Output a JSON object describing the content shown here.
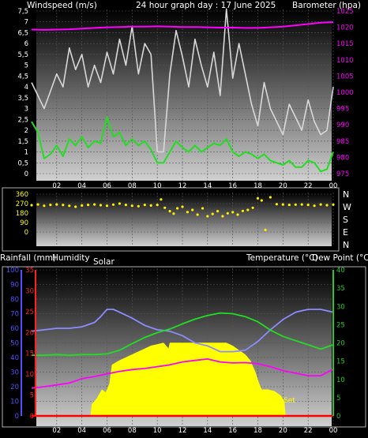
{
  "header": {
    "windspeed_label": "Windspeed (m/s)",
    "title": "24 hour graph day : 17 June 2025",
    "barometer_label": "Barometer (hpa)"
  },
  "middle": {
    "directions": [
      "N",
      "W",
      "S",
      "E",
      "N"
    ]
  },
  "lower_header": {
    "rainfall_label": "Rainfall (mm)",
    "humidity_label": "Humidity",
    "solar_label": "Solar",
    "temperature_label": "Temperature (°C)",
    "dewpoint_label": "Dew Point (°C)",
    "sunset_label": "Set"
  },
  "colors": {
    "gust": "#d8d8d8",
    "wind_avg": "#22dd22",
    "barometer": "#ff00ff",
    "direction": "#ffee00",
    "humidity": "#8c8cff",
    "temperature": "#22dd22",
    "dewpoint": "#ff00ff",
    "solar": "#ffff00",
    "rain": "#ff0000",
    "humidity_axis": "#5050ff",
    "rain_axis": "#ff2020",
    "temp_axis": "#22cc22",
    "baro_axis": "#ff00ff"
  },
  "chart_data": [
    {
      "type": "line",
      "name": "wind-barometer",
      "x_ticks": [
        "02",
        "04",
        "06",
        "08",
        "10",
        "12",
        "14",
        "16",
        "18",
        "20",
        "22",
        "00"
      ],
      "xlim": [
        0,
        24
      ],
      "y_left_ticks": [
        "7,5",
        "7",
        "6,5",
        "6",
        "5,5",
        "5",
        "4,5",
        "4",
        "3,5",
        "3",
        "2,5",
        "2",
        "1,5",
        "1",
        "0,5",
        "0"
      ],
      "ylim_left": [
        0,
        7.5
      ],
      "y_right_ticks": [
        "1025",
        "1020",
        "1015",
        "1010",
        "1005",
        "1000",
        "995",
        "990",
        "985",
        "980",
        "975"
      ],
      "ylim_right": [
        975,
        1025
      ],
      "series": [
        {
          "key": "gust",
          "axis": "left",
          "x": [
            0,
            0.5,
            1,
            1.5,
            2,
            2.5,
            3,
            3.5,
            4,
            4.5,
            5,
            5.5,
            6,
            6.5,
            7,
            7.5,
            8,
            8.5,
            9,
            9.5,
            10,
            10.5,
            11,
            11.5,
            12,
            12.5,
            13,
            13.5,
            14,
            14.5,
            15,
            15.5,
            16,
            16.5,
            17,
            17.5,
            18,
            18.5,
            19,
            19.5,
            20,
            20.5,
            21,
            21.5,
            22,
            22.5,
            23,
            23.5,
            24
          ],
          "values": [
            4.2,
            3.6,
            3.0,
            3.8,
            4.6,
            4.0,
            5.8,
            4.8,
            5.5,
            4.0,
            5.0,
            4.2,
            5.6,
            4.6,
            6.2,
            5.0,
            6.8,
            4.6,
            6.0,
            5.5,
            1.0,
            1.0,
            4.6,
            6.6,
            5.4,
            4.0,
            6.2,
            5.0,
            4.0,
            5.6,
            3.6,
            7.6,
            4.4,
            6.0,
            4.6,
            3.2,
            2.2,
            4.2,
            3.0,
            2.4,
            1.8,
            3.2,
            2.6,
            2.0,
            3.4,
            2.4,
            1.8,
            2.0,
            4.0
          ]
        },
        {
          "key": "wind_avg",
          "axis": "left",
          "x": [
            0,
            0.5,
            1,
            1.5,
            2,
            2.5,
            3,
            3.5,
            4,
            4.5,
            5,
            5.5,
            6,
            6.5,
            7,
            7.5,
            8,
            8.5,
            9,
            9.5,
            10,
            10.5,
            11,
            11.5,
            12,
            12.5,
            13,
            13.5,
            14,
            14.5,
            15,
            15.5,
            16,
            16.5,
            17,
            17.5,
            18,
            18.5,
            19,
            19.5,
            20,
            20.5,
            21,
            21.5,
            22,
            22.5,
            23,
            23.5,
            24
          ],
          "values": [
            2.4,
            1.9,
            0.7,
            0.9,
            1.3,
            0.8,
            1.6,
            1.3,
            1.7,
            1.2,
            1.5,
            1.4,
            2.6,
            1.7,
            1.9,
            1.3,
            1.6,
            1.3,
            1.5,
            1.1,
            0.5,
            0.5,
            1.0,
            1.5,
            1.2,
            1.0,
            1.3,
            1.0,
            1.2,
            1.4,
            1.3,
            1.6,
            1.0,
            0.8,
            1.0,
            0.9,
            0.7,
            0.9,
            0.6,
            0.5,
            0.4,
            0.6,
            0.3,
            0.3,
            0.6,
            0.5,
            0.1,
            0.2,
            1.0
          ]
        },
        {
          "key": "barometer",
          "axis": "right",
          "x": [
            0,
            1,
            2,
            3,
            4,
            5,
            6,
            7,
            8,
            9,
            10,
            11,
            12,
            13,
            14,
            15,
            16,
            17,
            18,
            19,
            20,
            21,
            22,
            23,
            24
          ],
          "values": [
            1019.3,
            1019.2,
            1019.3,
            1019.4,
            1019.6,
            1019.8,
            1020.0,
            1020.1,
            1020.2,
            1020.2,
            1020.3,
            1020.2,
            1020.1,
            1020.1,
            1020.0,
            1019.9,
            1019.9,
            1019.8,
            1019.8,
            1020.0,
            1020.2,
            1020.6,
            1021.0,
            1021.4,
            1021.6
          ]
        }
      ]
    },
    {
      "type": "scatter",
      "name": "wind-direction",
      "x_ticks": [
        "02",
        "04",
        "06",
        "08",
        "10",
        "12",
        "14",
        "16",
        "18",
        "20",
        "22",
        "00"
      ],
      "xlim": [
        0,
        24
      ],
      "y_ticks": [
        "360",
        "270",
        "180",
        "90",
        "0"
      ],
      "ylim": [
        0,
        360
      ],
      "series": [
        {
          "key": "direction",
          "x": [
            0,
            0.5,
            1,
            1.5,
            2,
            2.5,
            3,
            3.5,
            4,
            4.5,
            5,
            5.5,
            6,
            6.5,
            7,
            7.5,
            8,
            8.5,
            9,
            9.5,
            10,
            10.3,
            10.6,
            11,
            11.3,
            11.6,
            12,
            12.4,
            12.8,
            13.2,
            13.6,
            14,
            14.4,
            14.8,
            15.2,
            15.6,
            16,
            16.4,
            16.8,
            17.2,
            17.6,
            18,
            18.3,
            18.6,
            19,
            19.5,
            20,
            20.5,
            21,
            21.5,
            22,
            22.5,
            23,
            23.5,
            24
          ],
          "values": [
            255,
            262,
            250,
            258,
            262,
            257,
            250,
            240,
            252,
            258,
            262,
            255,
            250,
            260,
            270,
            258,
            250,
            245,
            258,
            252,
            258,
            310,
            230,
            198,
            175,
            225,
            240,
            190,
            210,
            165,
            225,
            150,
            172,
            198,
            150,
            178,
            188,
            165,
            200,
            210,
            230,
            320,
            300,
            20,
            330,
            265,
            262,
            258,
            260,
            262,
            258,
            250,
            262,
            255,
            260
          ]
        }
      ]
    },
    {
      "type": "line",
      "name": "temperature-humidity-solar",
      "x_ticks": [
        "02",
        "04",
        "06",
        "08",
        "10",
        "12",
        "14",
        "16",
        "18",
        "20",
        "22",
        "00"
      ],
      "xlim": [
        0,
        24
      ],
      "y_humidity_ticks": [
        "100",
        "90",
        "80",
        "70",
        "60",
        "50",
        "40",
        "30",
        "20",
        "10",
        "0"
      ],
      "ylim_humidity": [
        0,
        100
      ],
      "y_rain_ticks": [
        "35",
        "30",
        "25",
        "20",
        "15",
        "10",
        "5",
        "0"
      ],
      "ylim_rain": [
        0,
        35
      ],
      "y_temp_ticks": [
        "40",
        "35",
        "30",
        "25",
        "20",
        "15",
        "10",
        "5",
        "0"
      ],
      "ylim_temp": [
        0,
        40
      ],
      "series": [
        {
          "key": "humidity",
          "axis": "humidity",
          "x": [
            0,
            1,
            2,
            3,
            4,
            5,
            5.5,
            6,
            6.5,
            7,
            8,
            9,
            10,
            11,
            12,
            13,
            14,
            15,
            16,
            17,
            18,
            19,
            20,
            21,
            22,
            23,
            24
          ],
          "values": [
            58,
            59,
            60,
            60,
            61,
            64,
            68,
            73,
            73,
            71,
            67,
            62,
            59,
            58,
            55,
            50,
            48,
            44,
            44,
            45,
            51,
            59,
            66,
            71,
            73,
            73,
            71
          ]
        },
        {
          "key": "temperature",
          "axis": "temp",
          "x": [
            0,
            1,
            2,
            3,
            4,
            5,
            6,
            7,
            8,
            9,
            10,
            11,
            12,
            13,
            14,
            15,
            16,
            17,
            18,
            19,
            20,
            21,
            22,
            23,
            24
          ],
          "values": [
            16.6,
            16.6,
            16.8,
            16.6,
            16.8,
            16.8,
            17.0,
            18.0,
            19.8,
            21.5,
            22.8,
            23.8,
            25.2,
            26.5,
            27.5,
            28.2,
            28.0,
            27.2,
            25.8,
            23.5,
            21.8,
            20.6,
            19.5,
            18.3,
            19.5
          ]
        },
        {
          "key": "dewpoint",
          "axis": "temp",
          "x": [
            0,
            1,
            2,
            3,
            4,
            5,
            6,
            7,
            8,
            9,
            10,
            11,
            12,
            13,
            14,
            15,
            16,
            17,
            18,
            19,
            20,
            21,
            22,
            23,
            24
          ],
          "values": [
            7.6,
            8.0,
            8.5,
            9.0,
            10.2,
            10.8,
            11.5,
            12.2,
            12.7,
            13.0,
            13.5,
            14.0,
            14.8,
            15.2,
            15.6,
            14.8,
            14.5,
            14.6,
            14.3,
            13.5,
            12.4,
            11.7,
            11.0,
            11.0,
            12.8
          ]
        },
        {
          "key": "solar",
          "axis": "humidity",
          "x": [
            4.7,
            4.8,
            5.2,
            5.6,
            5.9,
            6.2,
            6.4,
            7.0,
            7.5,
            8.0,
            8.5,
            9.0,
            9.5,
            10.0,
            10.5,
            10.9,
            11.0,
            12.0,
            13.0,
            14.0,
            15.0,
            15.5,
            16.0,
            16.5,
            17.0,
            17.4,
            17.8,
            18.1,
            18.3,
            18.8,
            19.3,
            19.8,
            20.1,
            20.2
          ],
          "values": [
            0,
            8,
            12,
            18,
            16,
            22,
            35,
            38,
            40,
            42,
            44,
            46,
            48,
            49,
            50,
            46,
            50,
            50,
            50,
            50,
            50,
            50,
            48,
            45,
            42,
            38,
            30,
            22,
            18,
            18,
            17,
            14,
            10,
            0
          ]
        },
        {
          "key": "rain",
          "axis": "rain",
          "x": [
            0,
            24
          ],
          "values": [
            0,
            0
          ]
        }
      ]
    }
  ]
}
